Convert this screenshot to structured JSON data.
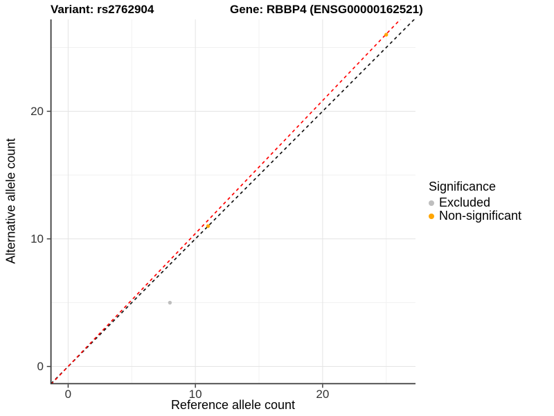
{
  "chart_data": {
    "type": "scatter",
    "titles": {
      "variant": "Variant: rs2762904",
      "gene": "Gene: RBBP4 (ENSG00000162521)"
    },
    "xlabel": "Reference allele count",
    "ylabel": "Alternative allele count",
    "xlim": [
      -1.35,
      27.3
    ],
    "ylim": [
      -1.35,
      27.2
    ],
    "x_ticks": [
      0,
      10,
      20
    ],
    "y_ticks": [
      0,
      10,
      20
    ],
    "grid": {
      "major": true,
      "minor": true
    },
    "series": [
      {
        "name": "Excluded",
        "color": "#BEBEBE",
        "points": [
          [
            8,
            5
          ]
        ]
      },
      {
        "name": "Non-significant",
        "color": "#FFA500",
        "points": [
          [
            11,
            11
          ],
          [
            25,
            26
          ]
        ]
      }
    ],
    "ablines": [
      {
        "name": "identity-line",
        "slope": 1.0,
        "intercept": 0.0,
        "color": "#111111",
        "dashed": true
      },
      {
        "name": "fit-line",
        "slope": 1.042,
        "intercept": 0.0,
        "color": "#FF0000",
        "dashed": true
      }
    ],
    "legend": {
      "title": "Significance",
      "position": "right",
      "entries": [
        {
          "label": "Excluded",
          "color": "#BEBEBE"
        },
        {
          "label": "Non-significant",
          "color": "#FFA500"
        }
      ]
    },
    "colors": {
      "grid_major": "#e4e4e4",
      "grid_minor": "#f1f1f1",
      "axis_line": "#3a3a3a"
    }
  }
}
